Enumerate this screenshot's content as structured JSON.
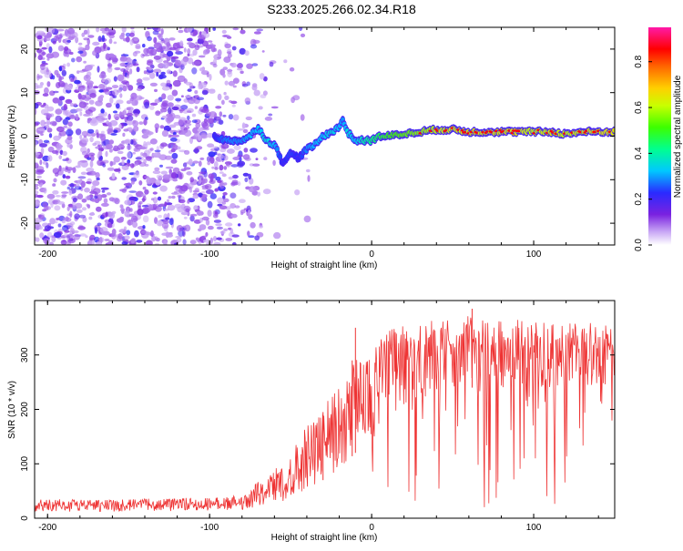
{
  "title": "S233.2025.266.02.34.R18",
  "chart_data": [
    {
      "type": "heatmap",
      "title": "S233.2025.266.02.34.R18",
      "xlabel": "Height of straight line (km)",
      "ylabel": "Frequency (Hz)",
      "xlim": [
        -208,
        150
      ],
      "ylim": [
        -25,
        25
      ],
      "xticks": [
        -200,
        -100,
        0,
        100
      ],
      "xtick_labels": [
        "-200",
        "-100",
        "0",
        "100"
      ],
      "yticks": [
        -20,
        -10,
        0,
        10,
        20
      ],
      "ytick_labels": [
        "-20",
        "-10",
        "0",
        "10",
        "20"
      ],
      "signal_trace": {
        "x": [
          -97,
          -90,
          -80,
          -75,
          -70,
          -65,
          -60,
          -55,
          -50,
          -45,
          -40,
          -35,
          -30,
          -25,
          -20,
          -18,
          -15,
          -10,
          -5,
          0,
          5,
          10,
          20,
          30,
          40,
          50,
          60,
          70,
          80,
          90,
          100,
          110,
          120,
          130,
          140,
          150
        ],
        "y": [
          0,
          -1,
          -1,
          0,
          2,
          -1,
          -2,
          -6,
          -4,
          -5,
          -3,
          -2,
          0,
          1,
          2,
          4,
          1,
          -1,
          -1,
          -1,
          0,
          0,
          0.5,
          1,
          1.5,
          1.5,
          1,
          1,
          1,
          1,
          1,
          1,
          0.5,
          1,
          1,
          1
        ],
        "amplitude": [
          0.3,
          0.4,
          0.4,
          0.45,
          0.45,
          0.5,
          0.45,
          0.3,
          0.35,
          0.3,
          0.4,
          0.45,
          0.45,
          0.5,
          0.45,
          0.4,
          0.5,
          0.45,
          0.55,
          0.6,
          0.65,
          0.7,
          0.75,
          0.8,
          0.85,
          0.88,
          0.9,
          0.9,
          0.88,
          0.9,
          0.85,
          0.88,
          0.85,
          0.88,
          0.9,
          0.9
        ]
      },
      "noise_region_x": [
        -208,
        -70
      ],
      "colorbar": {
        "label": "Normalized spectral amplitude",
        "range": [
          0.0,
          0.95
        ],
        "ticks": [
          0.0,
          0.2,
          0.4,
          0.6,
          0.8
        ],
        "tick_labels": [
          "0.0",
          "0.2",
          "0.4",
          "0.6",
          "0.8"
        ]
      }
    },
    {
      "type": "line",
      "xlabel": "Height of straight line (km)",
      "ylabel": "SNR (10 * v/v)",
      "xlim": [
        -208,
        150
      ],
      "ylim": [
        0,
        400
      ],
      "xticks": [
        -200,
        -100,
        0,
        100
      ],
      "xtick_labels": [
        "-200",
        "-100",
        "0",
        "100"
      ],
      "yticks": [
        0,
        100,
        200,
        300
      ],
      "ytick_labels": [
        "0",
        "100",
        "200",
        "300"
      ],
      "series": [
        {
          "name": "SNR",
          "color": "#ee3333",
          "envelope_x": [
            -208,
            -150,
            -100,
            -80,
            -70,
            -60,
            -50,
            -40,
            -30,
            -20,
            -10,
            0,
            10,
            20,
            30,
            40,
            50,
            60,
            70,
            80,
            90,
            100,
            110,
            120,
            130,
            140,
            150
          ],
          "envelope_low": [
            12,
            12,
            14,
            16,
            20,
            25,
            35,
            50,
            70,
            90,
            120,
            150,
            180,
            200,
            220,
            230,
            240,
            240,
            240,
            240,
            240,
            240,
            240,
            240,
            240,
            240,
            240
          ],
          "envelope_high": [
            35,
            35,
            38,
            42,
            70,
            90,
            120,
            170,
            210,
            250,
            290,
            320,
            345,
            355,
            360,
            365,
            370,
            375,
            370,
            365,
            365,
            360,
            360,
            360,
            360,
            360,
            360
          ],
          "spikes": [
            {
              "x": -10,
              "y": 350
            },
            {
              "x": -12,
              "y": 290
            },
            {
              "x": -30,
              "y": 195
            },
            {
              "x": 62,
              "y": 385
            }
          ]
        }
      ]
    }
  ],
  "colors": {
    "heat_noise": "#8c4ce6",
    "line": "#ee3333",
    "axis": "#000000"
  }
}
